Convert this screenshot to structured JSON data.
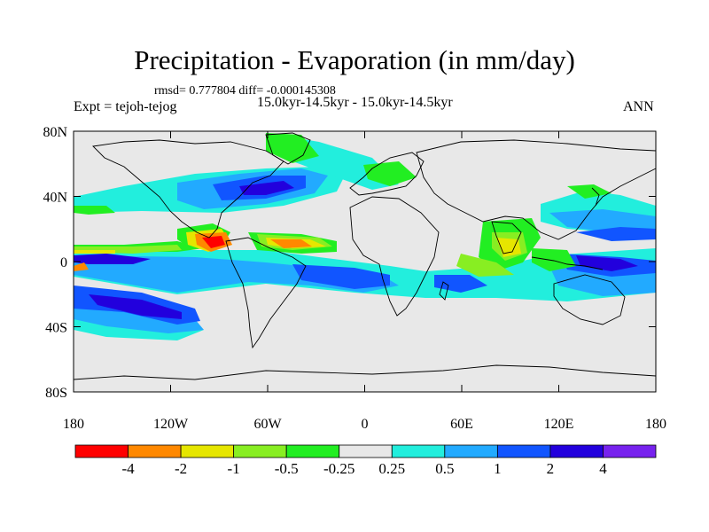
{
  "title": "Precipitation - Evaporation (in mm/day)",
  "stats": "rmsd= 0.777804  diff= -0.000145308",
  "period": "15.0kyr-14.5kyr - 15.0kyr-14.5kyr",
  "expt": "Expt = tejoh-tejog",
  "season": "ANN",
  "lat_ticks": [
    "80N",
    "40N",
    "0",
    "40S",
    "80S"
  ],
  "lon_ticks": [
    "180",
    "120W",
    "60W",
    "0",
    "60E",
    "120E",
    "180"
  ],
  "colorbar": {
    "labels": [
      "-4",
      "-2",
      "-1",
      "-0.5",
      "-0.25",
      "0.25",
      "0.5",
      "1",
      "2",
      "4"
    ],
    "colors": [
      "#ff0000",
      "#ff8800",
      "#e6e600",
      "#88ee22",
      "#22ee22",
      "#e8e8e8",
      "#22eedd",
      "#22aaff",
      "#1155ff",
      "#2200dd",
      "#7722ee"
    ]
  },
  "colors": {
    "land_ocean_base": "#e8e8e8",
    "coastline": "#000000"
  }
}
